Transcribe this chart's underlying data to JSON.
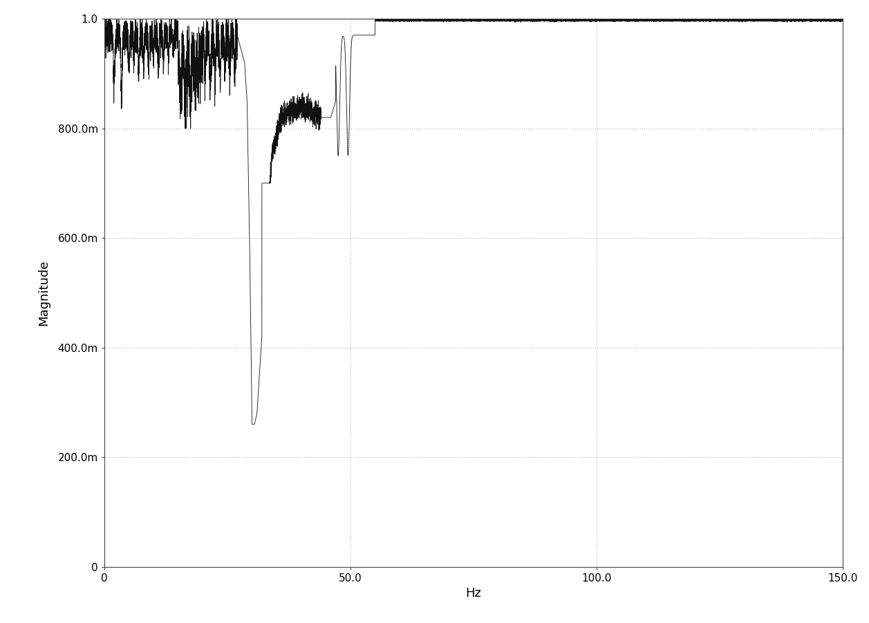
{
  "title": "",
  "xlabel": "Hz",
  "ylabel": "Magnitude",
  "xlim": [
    0,
    150.0
  ],
  "ylim": [
    0,
    1.0
  ],
  "x_ticks": [
    0,
    50.0,
    100.0,
    150.0
  ],
  "y_ticks": [
    0,
    0.2,
    0.4,
    0.6,
    0.8,
    1.0
  ],
  "y_tick_labels": [
    "0",
    "200.0m",
    "400.0m",
    "600.0m",
    "800.0m",
    "1.0"
  ],
  "grid_color": "#aaaaaa",
  "line_color": "#111111",
  "background_color": "#ffffff",
  "figsize": [
    12.57,
    9.01
  ],
  "dpi": 100
}
